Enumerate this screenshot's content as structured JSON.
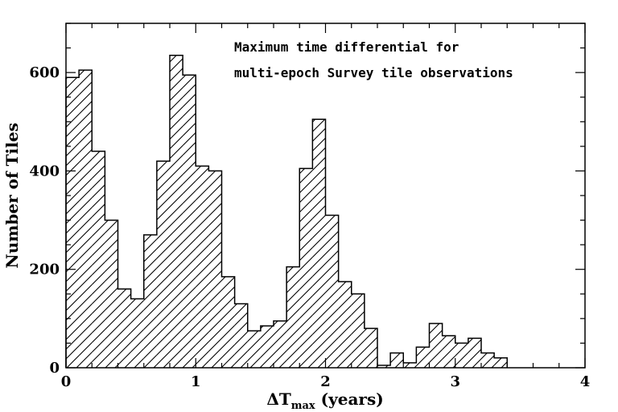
{
  "chart_data": {
    "type": "bar",
    "title_lines": [
      "Maximum time differential for",
      "multi-epoch Survey tile observations"
    ],
    "xlabel": {
      "symbol": "ΔT",
      "subscript": "max",
      "unit": " (years)"
    },
    "ylabel": "Number of Tiles",
    "xlim": [
      0,
      4
    ],
    "ylim": [
      0,
      700
    ],
    "xticks": [
      0,
      1,
      2,
      3,
      4
    ],
    "yticks": [
      0,
      200,
      400,
      600
    ],
    "bin_width": 0.1,
    "bin_edges_start": 0,
    "values": [
      590,
      605,
      440,
      300,
      160,
      140,
      270,
      420,
      635,
      595,
      410,
      400,
      185,
      130,
      75,
      85,
      95,
      205,
      405,
      505,
      310,
      175,
      150,
      80,
      5,
      30,
      10,
      42,
      90,
      65,
      50,
      60,
      30,
      20
    ],
    "hatch": "diagonal",
    "color": "#000000"
  }
}
